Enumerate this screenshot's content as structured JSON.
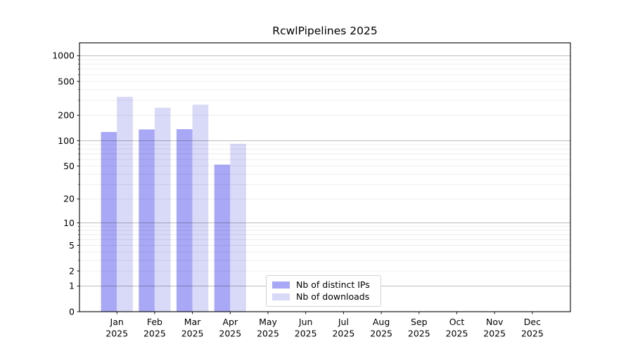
{
  "title": "RcwlPipelines 2025",
  "chart_data": {
    "type": "bar",
    "title": "RcwlPipelines 2025",
    "scale": "log10(1+x)",
    "grid": "horizontal",
    "categories": [
      "Jan",
      "Feb",
      "Mar",
      "Apr",
      "May",
      "Jun",
      "Jul",
      "Aug",
      "Sep",
      "Oct",
      "Nov",
      "Dec"
    ],
    "year_label": "2025",
    "series": [
      {
        "name": "Nb of distinct IPs",
        "color": "#a8a8f6",
        "values": [
          127,
          136,
          137,
          52,
          null,
          null,
          null,
          null,
          null,
          null,
          null,
          null
        ]
      },
      {
        "name": "Nb of downloads",
        "color": "#d9d9f8",
        "values": [
          330,
          245,
          266,
          92,
          null,
          null,
          null,
          null,
          null,
          null,
          null,
          null
        ]
      }
    ],
    "y_ticks": [
      0,
      1,
      2,
      5,
      10,
      20,
      50,
      100,
      200,
      500,
      1000
    ],
    "ylim": [
      0,
      1420
    ],
    "xlabel": "",
    "ylabel": "",
    "legend_position": "bottom-center"
  },
  "colors": {
    "major_grid": "rgba(0,0,0,0.30)",
    "minor_grid": "rgba(0,0,0,0.085)",
    "axis": "#000000"
  }
}
